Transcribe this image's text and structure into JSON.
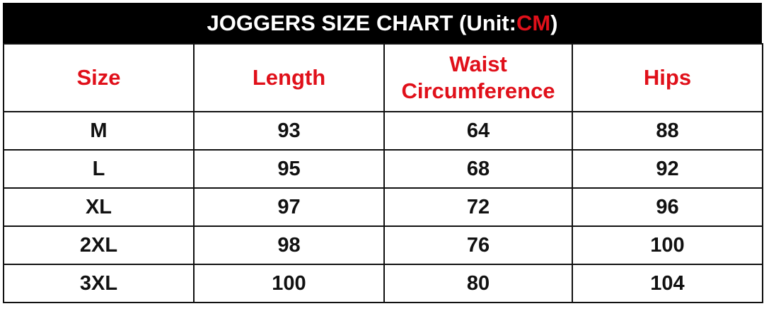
{
  "title": {
    "text": "JOGGERS SIZE CHART (Unit: ",
    "unit": "CM",
    "close": ")"
  },
  "colors": {
    "accent": "#e0101a",
    "title_bg": "#000000"
  },
  "columns": [
    "Size",
    "Length",
    "Waist Circumference",
    "Hips"
  ],
  "rows": [
    [
      "M",
      "93",
      "64",
      "88"
    ],
    [
      "L",
      "95",
      "68",
      "92"
    ],
    [
      "XL",
      "97",
      "72",
      "96"
    ],
    [
      "2XL",
      "98",
      "76",
      "100"
    ],
    [
      "3XL",
      "100",
      "80",
      "104"
    ]
  ]
}
